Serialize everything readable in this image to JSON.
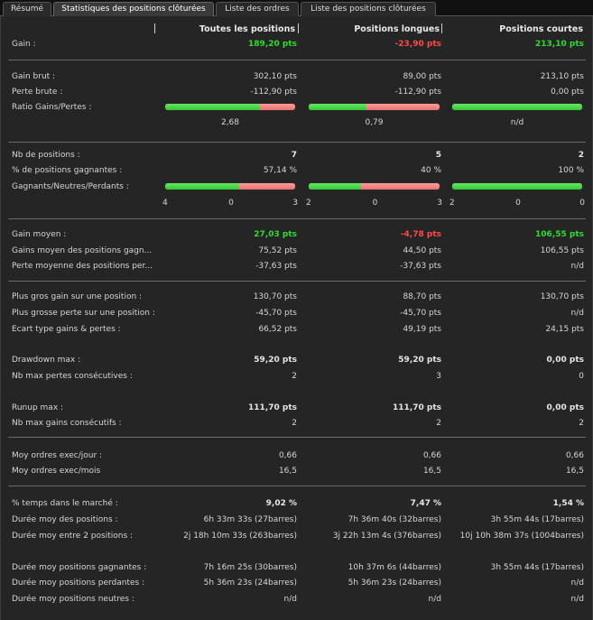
{
  "tabs": [
    "Résumé",
    "Statistiques des positions clôturées",
    "Liste des ordres",
    "Liste des positions clôturées"
  ],
  "active_tab": 1,
  "headers": {
    "all": "Toutes les positions",
    "long": "Positions longues",
    "short": "Positions courtes"
  },
  "colors": {
    "green": "#2fdc2f",
    "red": "#ff4a4a",
    "bar_green": "#35dc35",
    "bar_red": "#ff7b7b"
  },
  "rows": {
    "gain": {
      "label": "Gain :",
      "all": "189,20 pts",
      "long": "-23,90 pts",
      "short": "213,10 pts"
    },
    "gain_brut": {
      "label": "Gain brut :",
      "all": "302,10 pts",
      "long": "89,00 pts",
      "short": "213,10 pts"
    },
    "perte_brute": {
      "label": "Perte brute :",
      "all": "-112,90 pts",
      "long": "-112,90 pts",
      "short": "0,00 pts"
    },
    "ratio": {
      "label": "Ratio Gains/Pertes :",
      "all": "2,68",
      "long": "0,79",
      "short": "n/d",
      "bars": {
        "all": 0.73,
        "long": 0.44,
        "short": 1.0
      }
    },
    "nb_positions": {
      "label": "Nb de positions :",
      "all": "7",
      "long": "5",
      "short": "2"
    },
    "pct_gagnantes": {
      "label": "% de positions gagnantes :",
      "all": "57,14 %",
      "long": "40 %",
      "short": "100 %"
    },
    "gnp": {
      "label": "Gagnants/Neutres/Perdants :",
      "all": {
        "win": "4",
        "neutral": "0",
        "lose": "3",
        "win_frac": 0.5714
      },
      "long": {
        "win": "2",
        "neutral": "0",
        "lose": "3",
        "win_frac": 0.4
      },
      "short": {
        "win": "2",
        "neutral": "0",
        "lose": "0",
        "win_frac": 1.0
      }
    },
    "gain_moyen": {
      "label": "Gain moyen :",
      "all": "27,03 pts",
      "long": "-4,78 pts",
      "short": "106,55 pts"
    },
    "gains_moyen_gagn": {
      "label": "Gains moyen des positions gagn...",
      "all": "75,52 pts",
      "long": "44,50 pts",
      "short": "106,55 pts"
    },
    "perte_moyenne": {
      "label": "Perte moyenne des positions per...",
      "all": "-37,63 pts",
      "long": "-37,63 pts",
      "short": "n/d"
    },
    "plus_gros_gain": {
      "label": "Plus gros gain sur une position :",
      "all": "130,70 pts",
      "long": "88,70 pts",
      "short": "130,70 pts"
    },
    "plus_grosse_perte": {
      "label": "Plus grosse perte sur une position :",
      "all": "-45,70 pts",
      "long": "-45,70 pts",
      "short": "n/d"
    },
    "ecart_type": {
      "label": "Ecart type gains & pertes :",
      "all": "66,52 pts",
      "long": "49,19 pts",
      "short": "24,15 pts"
    },
    "drawdown": {
      "label": "Drawdown max :",
      "all": "59,20 pts",
      "long": "59,20 pts",
      "short": "0,00 pts"
    },
    "max_pertes": {
      "label": "Nb max pertes consécutives :",
      "all": "2",
      "long": "3",
      "short": "0"
    },
    "runup": {
      "label": "Runup max :",
      "all": "111,70 pts",
      "long": "111,70 pts",
      "short": "0,00 pts"
    },
    "max_gains": {
      "label": "Nb max gains consécutifs :",
      "all": "2",
      "long": "2",
      "short": "2"
    },
    "moy_jour": {
      "label": "Moy ordres exec/jour :",
      "all": "0,66",
      "long": "0,66",
      "short": "0,66"
    },
    "moy_mois": {
      "label": "Moy ordres exec/mois",
      "all": "16,5",
      "long": "16,5",
      "short": "16,5"
    },
    "temps_marche": {
      "label": "% temps dans le marché :",
      "all": "9,02 %",
      "long": "7,47 %",
      "short": "1,54 %"
    },
    "duree_moy": {
      "label": "Durée moy des positions :",
      "all": "6h 33m 33s (27barres)",
      "long": "7h 36m 40s (32barres)",
      "short": "3h 55m 44s (17barres)"
    },
    "duree_entre": {
      "label": "Durée moy entre 2 positions :",
      "all": "2j 18h 10m 33s (263barres)",
      "long": "3j 22h 13m 4s (376barres)",
      "short": "10j 10h 38m 37s (1004barres)"
    },
    "duree_gagnantes": {
      "label": "Durée moy positions gagnantes :",
      "all": "7h 16m 25s (30barres)",
      "long": "10h 37m 6s (44barres)",
      "short": "3h 55m 44s (17barres)"
    },
    "duree_perdantes": {
      "label": "Durée moy positions perdantes :",
      "all": "5h 36m 23s (24barres)",
      "long": "5h 36m 23s (24barres)",
      "short": "n/d"
    },
    "duree_neutres": {
      "label": "Durée moy positions neutres :",
      "all": "n/d",
      "long": "n/d",
      "short": "n/d"
    }
  }
}
